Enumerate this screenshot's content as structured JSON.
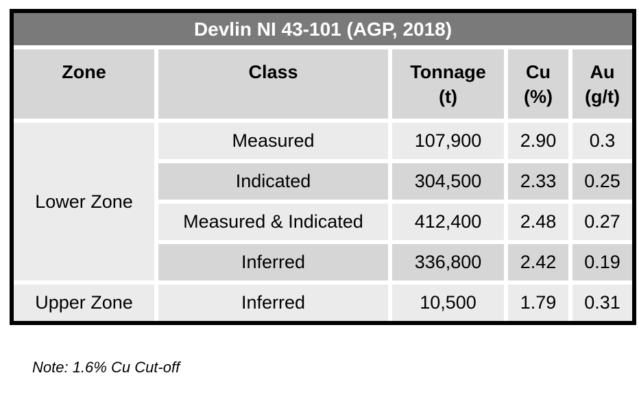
{
  "colors": {
    "border": "#000000",
    "title_bar_bg": "#7a7a7a",
    "title_text": "#ffffff",
    "header_bg": "#d6d6d6",
    "row_light_bg": "#ebebeb",
    "row_dark_bg": "#d6d6d6",
    "body_text": "#000000"
  },
  "table": {
    "title": "Devlin NI 43-101 (AGP, 2018)",
    "columns": [
      {
        "label": "Zone",
        "unit": ""
      },
      {
        "label": "Class",
        "unit": ""
      },
      {
        "label": "Tonnage",
        "unit": "(t)"
      },
      {
        "label": "Cu",
        "unit": "(%)"
      },
      {
        "label": "Au",
        "unit": "(g/t)"
      }
    ],
    "zones": [
      {
        "zone": "Lower Zone",
        "rows": [
          {
            "class": "Measured",
            "tonnage": "107,900",
            "cu": "2.90",
            "au": "0.3"
          },
          {
            "class": "Indicated",
            "tonnage": "304,500",
            "cu": "2.33",
            "au": "0.25"
          },
          {
            "class": "Measured & Indicated",
            "tonnage": "412,400",
            "cu": "2.48",
            "au": "0.27"
          },
          {
            "class": "Inferred",
            "tonnage": "336,800",
            "cu": "2.42",
            "au": "0.19"
          }
        ]
      },
      {
        "zone": "Upper Zone",
        "rows": [
          {
            "class": "Inferred",
            "tonnage": "10,500",
            "cu": "1.79",
            "au": "0.31"
          }
        ]
      }
    ]
  },
  "footnote": "Note: 1.6% Cu Cut-off",
  "chart_data": {
    "type": "table",
    "title": "Devlin NI 43-101 (AGP, 2018)",
    "columns": [
      "Zone",
      "Class",
      "Tonnage (t)",
      "Cu (%)",
      "Au (g/t)"
    ],
    "rows": [
      [
        "Lower Zone",
        "Measured",
        107900,
        2.9,
        0.3
      ],
      [
        "Lower Zone",
        "Indicated",
        304500,
        2.33,
        0.25
      ],
      [
        "Lower Zone",
        "Measured & Indicated",
        412400,
        2.48,
        0.27
      ],
      [
        "Lower Zone",
        "Inferred",
        336800,
        2.42,
        0.19
      ],
      [
        "Upper Zone",
        "Inferred",
        10500,
        1.79,
        0.31
      ]
    ],
    "note": "Note: 1.6% Cu Cut-off"
  }
}
